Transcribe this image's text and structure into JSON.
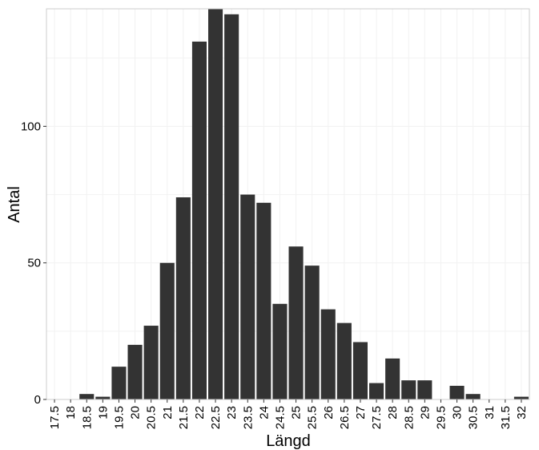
{
  "chart_data": {
    "type": "bar",
    "xlabel": "Längd",
    "ylabel": "Antal",
    "categories": [
      "17.5",
      "18",
      "18.5",
      "19",
      "19.5",
      "20",
      "20.5",
      "21",
      "21.5",
      "22",
      "22.5",
      "23",
      "23.5",
      "24",
      "24.5",
      "25",
      "25.5",
      "26",
      "26.5",
      "27",
      "27.5",
      "28",
      "28.5",
      "29",
      "29.5",
      "30",
      "30.5",
      "31",
      "31.5",
      "32"
    ],
    "values": [
      0,
      0,
      2,
      1,
      12,
      20,
      27,
      50,
      74,
      131,
      143,
      141,
      75,
      72,
      35,
      56,
      49,
      33,
      28,
      21,
      6,
      15,
      7,
      7,
      0,
      5,
      2,
      0,
      0,
      1
    ],
    "ylim": [
      0,
      143
    ],
    "yticks": [
      0,
      50,
      100
    ],
    "grid": true,
    "colors": {
      "bar": "#333333",
      "grid": "#f2f2f2",
      "panel_border": "#cccccc"
    }
  }
}
